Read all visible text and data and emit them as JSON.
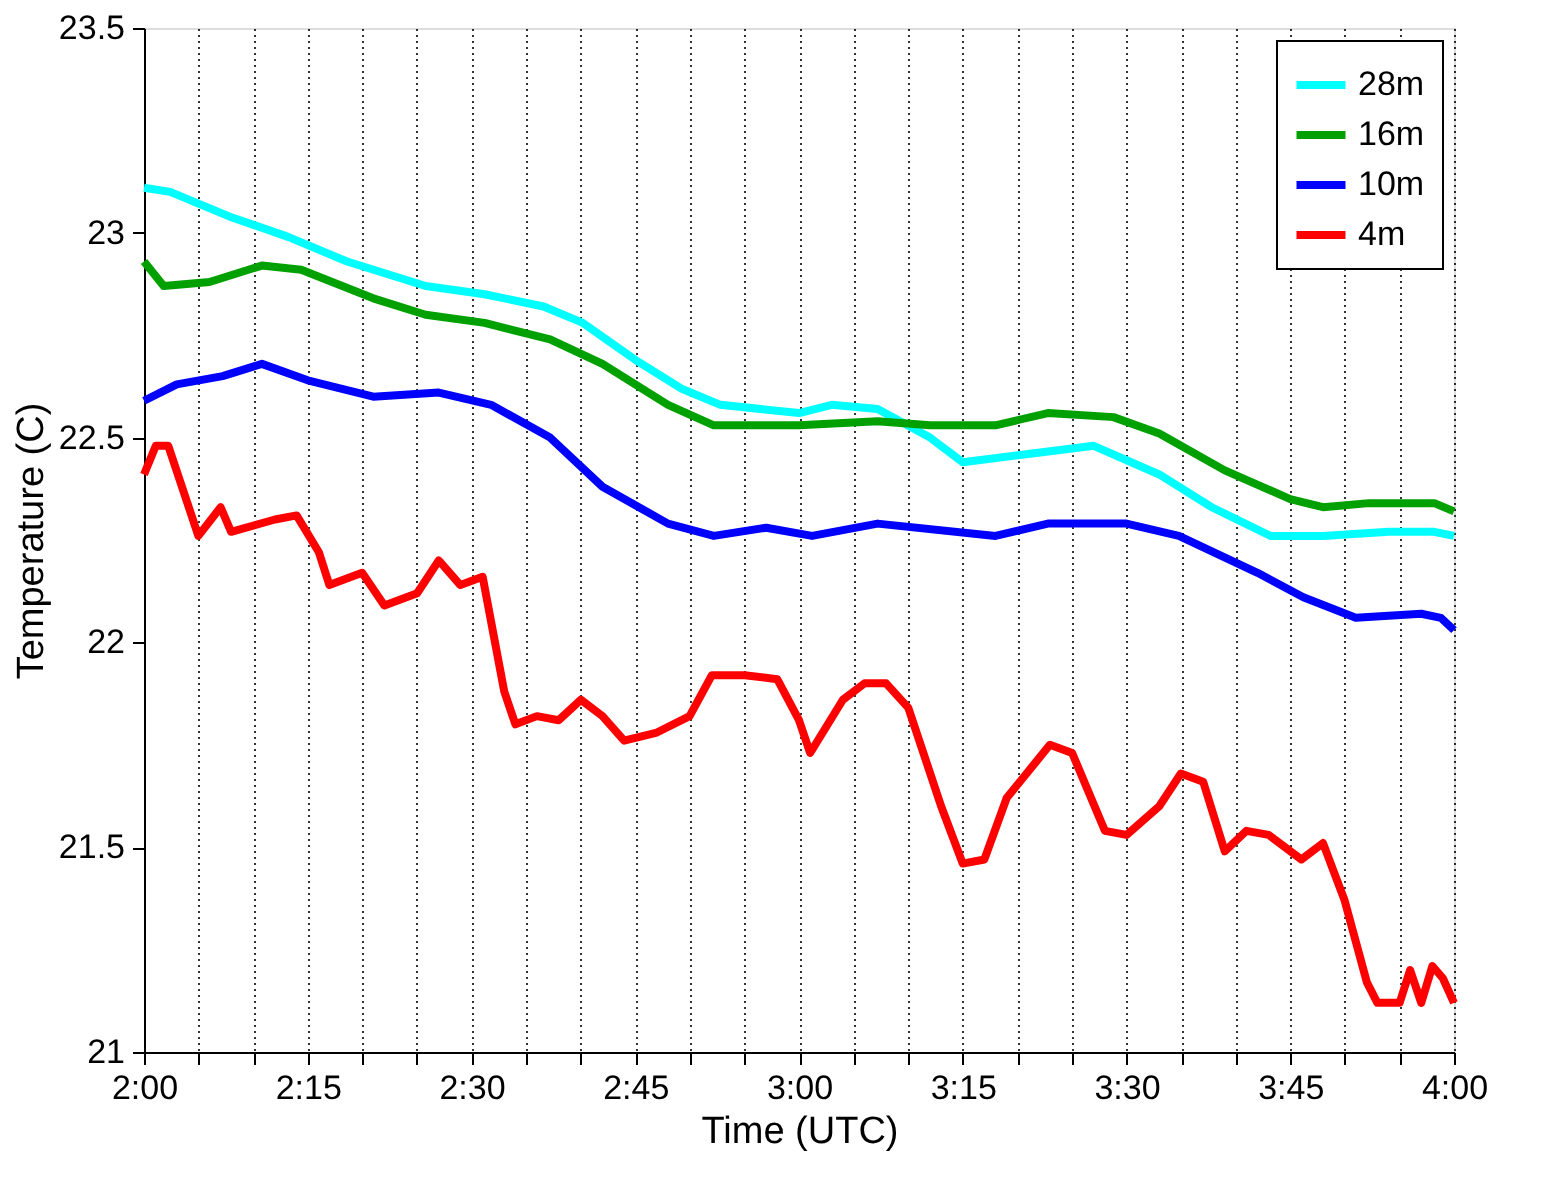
{
  "chart_data": {
    "type": "line",
    "xlabel": "Time (UTC)",
    "ylabel": "Temperature (C)",
    "xlim": [
      2,
      4
    ],
    "ylim": [
      21,
      23.5
    ],
    "xticks": [
      {
        "value": 2,
        "label": "2:00"
      },
      {
        "value": 2.0833,
        "label": null
      },
      {
        "value": 2.1667,
        "label": null
      },
      {
        "value": 2.25,
        "label": "2:15"
      },
      {
        "value": 2.3333,
        "label": null
      },
      {
        "value": 2.4167,
        "label": null
      },
      {
        "value": 2.5,
        "label": "2:30"
      },
      {
        "value": 2.5833,
        "label": null
      },
      {
        "value": 2.6667,
        "label": null
      },
      {
        "value": 2.75,
        "label": "2:45"
      },
      {
        "value": 2.8333,
        "label": null
      },
      {
        "value": 2.9167,
        "label": null
      },
      {
        "value": 3,
        "label": "3:00"
      },
      {
        "value": 3.0833,
        "label": null
      },
      {
        "value": 3.1667,
        "label": null
      },
      {
        "value": 3.25,
        "label": "3:15"
      },
      {
        "value": 3.3333,
        "label": null
      },
      {
        "value": 3.4167,
        "label": null
      },
      {
        "value": 3.5,
        "label": "3:30"
      },
      {
        "value": 3.5833,
        "label": null
      },
      {
        "value": 3.6667,
        "label": null
      },
      {
        "value": 3.75,
        "label": "3:45"
      },
      {
        "value": 3.8333,
        "label": null
      },
      {
        "value": 3.9167,
        "label": null
      },
      {
        "value": 4,
        "label": "4:00"
      }
    ],
    "yticks": [
      21,
      21.5,
      22,
      22.5,
      23,
      23.5
    ],
    "grid": "x",
    "legend": "top right",
    "line_style": "solid",
    "marker": "none",
    "series": [
      {
        "name": "28m",
        "color": "#00ffff",
        "x": [
          2.0,
          2.04,
          2.13,
          2.22,
          2.31,
          2.43,
          2.52,
          2.61,
          2.67,
          2.75,
          2.82,
          2.88,
          3.0,
          3.05,
          3.12,
          3.2,
          3.25,
          3.35,
          3.45,
          3.55,
          3.63,
          3.72,
          3.8,
          3.9,
          3.97,
          4.0
        ],
        "values": [
          23.11,
          23.1,
          23.04,
          22.99,
          22.93,
          22.87,
          22.85,
          22.82,
          22.78,
          22.69,
          22.62,
          22.58,
          22.56,
          22.58,
          22.57,
          22.5,
          22.44,
          22.46,
          22.48,
          22.41,
          22.33,
          22.26,
          22.26,
          22.27,
          22.27,
          22.26
        ]
      },
      {
        "name": "16m",
        "color": "#00a000",
        "x": [
          2.0,
          2.03,
          2.1,
          2.18,
          2.24,
          2.35,
          2.43,
          2.52,
          2.62,
          2.7,
          2.8,
          2.87,
          3.0,
          3.12,
          3.2,
          3.3,
          3.38,
          3.48,
          3.55,
          3.65,
          3.75,
          3.8,
          3.87,
          3.97,
          4.0
        ],
        "values": [
          22.93,
          22.87,
          22.88,
          22.92,
          22.91,
          22.84,
          22.8,
          22.78,
          22.74,
          22.68,
          22.58,
          22.53,
          22.53,
          22.54,
          22.53,
          22.53,
          22.56,
          22.55,
          22.51,
          22.42,
          22.35,
          22.33,
          22.34,
          22.34,
          22.32
        ]
      },
      {
        "name": "10m",
        "color": "#0000ff",
        "x": [
          2.0,
          2.05,
          2.12,
          2.18,
          2.25,
          2.35,
          2.45,
          2.53,
          2.62,
          2.7,
          2.8,
          2.87,
          2.95,
          3.02,
          3.12,
          3.3,
          3.38,
          3.5,
          3.58,
          3.7,
          3.77,
          3.85,
          3.95,
          3.98,
          4.0
        ],
        "values": [
          22.59,
          22.63,
          22.65,
          22.68,
          22.64,
          22.6,
          22.61,
          22.58,
          22.5,
          22.38,
          22.29,
          22.26,
          22.28,
          22.26,
          22.29,
          22.26,
          22.29,
          22.29,
          22.26,
          22.17,
          22.11,
          22.06,
          22.07,
          22.06,
          22.03
        ]
      },
      {
        "name": "4m",
        "color": "#ff0000",
        "x": [
          2.0,
          2.018,
          2.037,
          2.083,
          2.117,
          2.133,
          2.2,
          2.233,
          2.267,
          2.283,
          2.333,
          2.367,
          2.417,
          2.45,
          2.483,
          2.517,
          2.55,
          2.567,
          2.6,
          2.633,
          2.667,
          2.7,
          2.733,
          2.783,
          2.833,
          2.867,
          2.917,
          2.967,
          3.0,
          3.017,
          3.067,
          3.1,
          3.133,
          3.167,
          3.217,
          3.25,
          3.283,
          3.317,
          3.383,
          3.417,
          3.467,
          3.5,
          3.55,
          3.583,
          3.617,
          3.65,
          3.683,
          3.717,
          3.767,
          3.8,
          3.833,
          3.867,
          3.883,
          3.917,
          3.933,
          3.95,
          3.967,
          3.983,
          4.0
        ],
        "values": [
          22.41,
          22.48,
          22.48,
          22.26,
          22.33,
          22.27,
          22.3,
          22.31,
          22.22,
          22.14,
          22.17,
          22.09,
          22.12,
          22.2,
          22.14,
          22.16,
          21.88,
          21.8,
          21.82,
          21.81,
          21.86,
          21.82,
          21.76,
          21.78,
          21.82,
          21.92,
          21.92,
          21.91,
          21.81,
          21.73,
          21.86,
          21.9,
          21.9,
          21.84,
          21.6,
          21.46,
          21.47,
          21.62,
          21.75,
          21.73,
          21.54,
          21.53,
          21.6,
          21.68,
          21.66,
          21.49,
          21.54,
          21.53,
          21.47,
          21.51,
          21.37,
          21.17,
          21.12,
          21.12,
          21.2,
          21.12,
          21.21,
          21.18,
          21.12
        ]
      }
    ]
  }
}
